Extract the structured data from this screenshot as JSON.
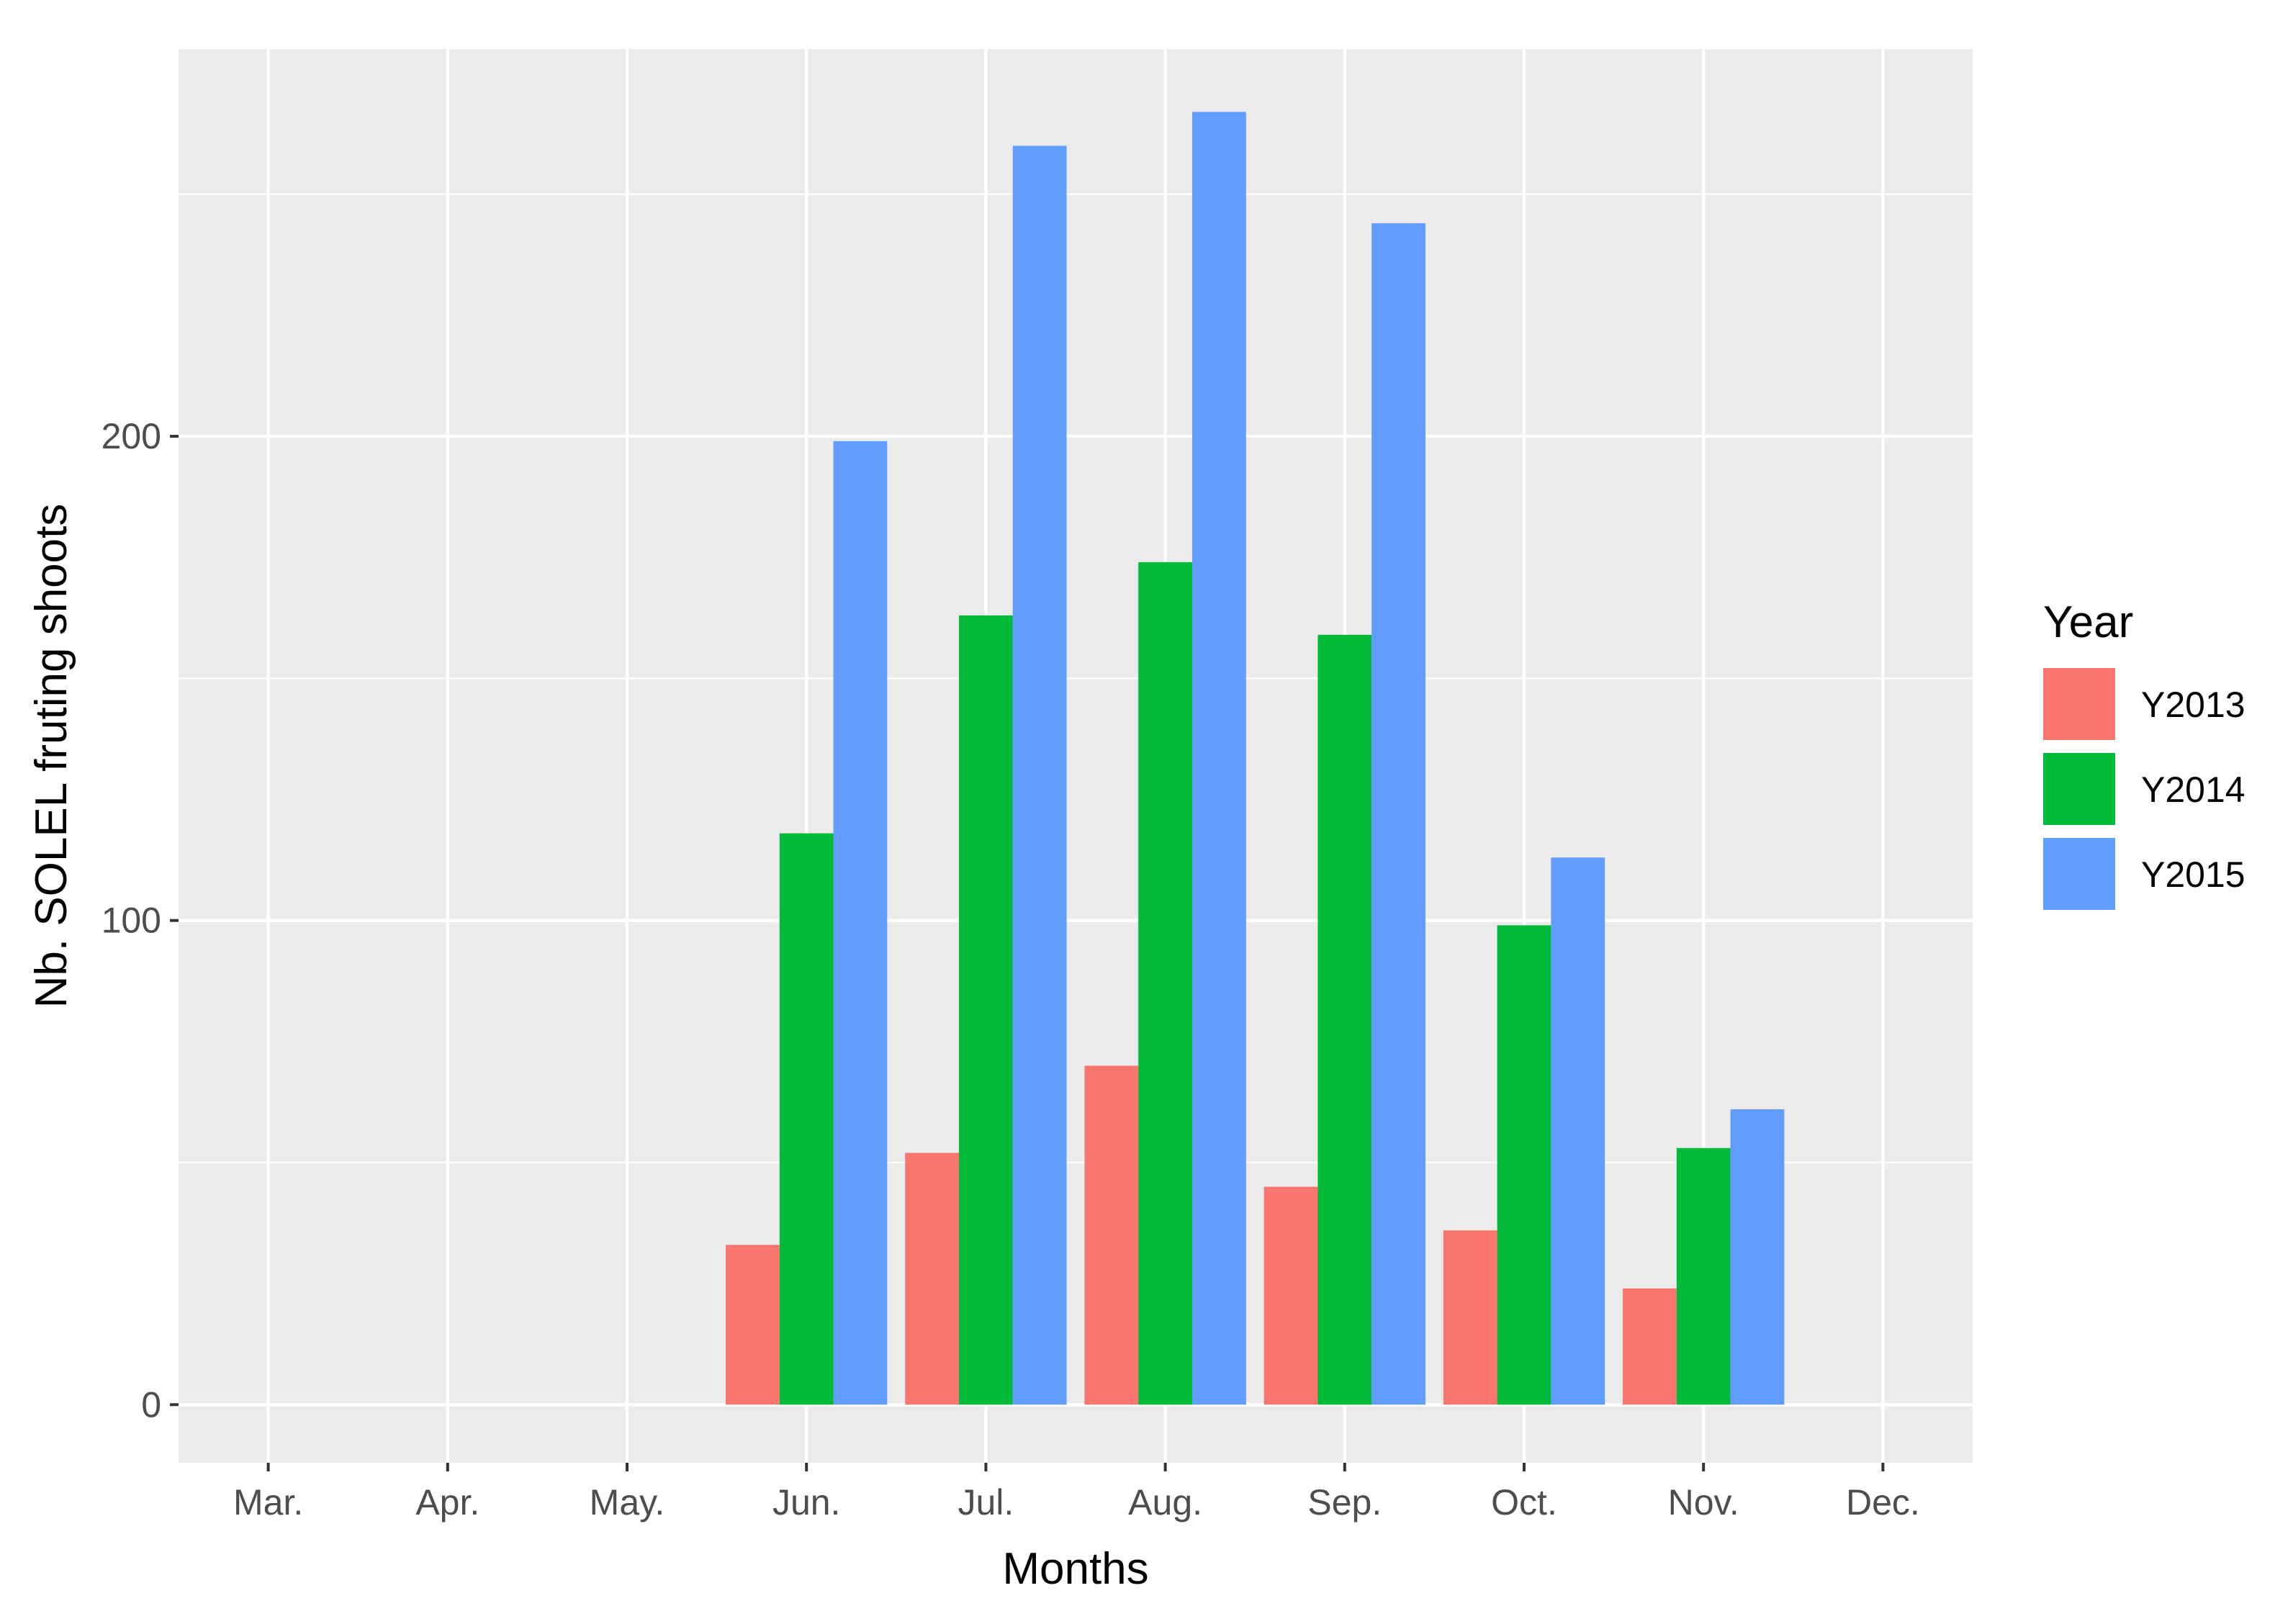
{
  "chart_data": {
    "type": "bar",
    "title": "",
    "xlabel": "Months",
    "ylabel": "Nb. SOLEL fruting shoots",
    "categories": [
      "Mar.",
      "Apr.",
      "May.",
      "Jun.",
      "Jul.",
      "Aug.",
      "Sep.",
      "Oct.",
      "Nov.",
      "Dec."
    ],
    "series": [
      {
        "name": "Y2013",
        "values": [
          0,
          0,
          0,
          33,
          52,
          70,
          45,
          36,
          24,
          0
        ]
      },
      {
        "name": "Y2014",
        "values": [
          0,
          0,
          0,
          118,
          163,
          174,
          159,
          99,
          53,
          0
        ]
      },
      {
        "name": "Y2015",
        "values": [
          0,
          0,
          0,
          199,
          260,
          267,
          244,
          113,
          61,
          0
        ]
      }
    ],
    "yticks": [
      0,
      100,
      200
    ],
    "ylim": [
      -12,
      280
    ],
    "grid": true,
    "legend": {
      "title": "Year",
      "position": "right"
    },
    "colors": {
      "Y2013": "#F8766D",
      "Y2014": "#00BA38",
      "Y2015": "#619CFF"
    },
    "panel_background": "#EBEBEB",
    "gridline_color": "#FFFFFF"
  }
}
